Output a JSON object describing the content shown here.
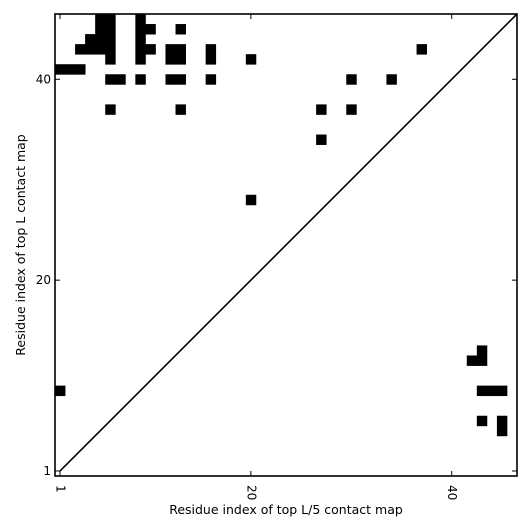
{
  "chart_data": {
    "type": "heatmap",
    "xlabel": "Residue index of top L/5 contact map",
    "ylabel": "Residue index of top L contact map",
    "xlim": [
      0.5,
      46.5
    ],
    "ylim": [
      0.5,
      46.5
    ],
    "x_ticks": [
      1,
      20,
      40
    ],
    "y_ticks": [
      1,
      20,
      40
    ],
    "x_tick_labels": [
      "1",
      "20",
      "40"
    ],
    "y_tick_labels": [
      "1",
      "20",
      "40"
    ],
    "diagonal": true,
    "cell_color": "#000000",
    "background_color": "#ffffff",
    "upper_triangle_contacts": [
      [
        1,
        41
      ],
      [
        2,
        41
      ],
      [
        3,
        41
      ],
      [
        3,
        43
      ],
      [
        4,
        43
      ],
      [
        4,
        44
      ],
      [
        5,
        43
      ],
      [
        5,
        44
      ],
      [
        5,
        45
      ],
      [
        5,
        46
      ],
      [
        6,
        43
      ],
      [
        6,
        44
      ],
      [
        6,
        45
      ],
      [
        6,
        46
      ],
      [
        6,
        42
      ],
      [
        6,
        40
      ],
      [
        6,
        37
      ],
      [
        7,
        40
      ],
      [
        9,
        46
      ],
      [
        9,
        45
      ],
      [
        9,
        44
      ],
      [
        9,
        43
      ],
      [
        9,
        42
      ],
      [
        9,
        40
      ],
      [
        10,
        45
      ],
      [
        10,
        43
      ],
      [
        12,
        43
      ],
      [
        12,
        42
      ],
      [
        12,
        40
      ],
      [
        13,
        43
      ],
      [
        13,
        42
      ],
      [
        13,
        40
      ],
      [
        13,
        45
      ],
      [
        13,
        37
      ],
      [
        16,
        43
      ],
      [
        16,
        42
      ],
      [
        16,
        40
      ],
      [
        20,
        42
      ],
      [
        20,
        28
      ],
      [
        27,
        37
      ],
      [
        27,
        34
      ],
      [
        30,
        40
      ],
      [
        30,
        37
      ],
      [
        34,
        40
      ],
      [
        37,
        43
      ]
    ],
    "lower_triangle_contacts": [
      [
        1,
        9
      ],
      [
        42,
        12
      ],
      [
        43,
        12
      ],
      [
        43,
        13
      ],
      [
        43,
        9
      ],
      [
        44,
        9
      ],
      [
        45,
        9
      ],
      [
        43,
        6
      ],
      [
        45,
        6
      ],
      [
        45,
        5
      ]
    ]
  }
}
